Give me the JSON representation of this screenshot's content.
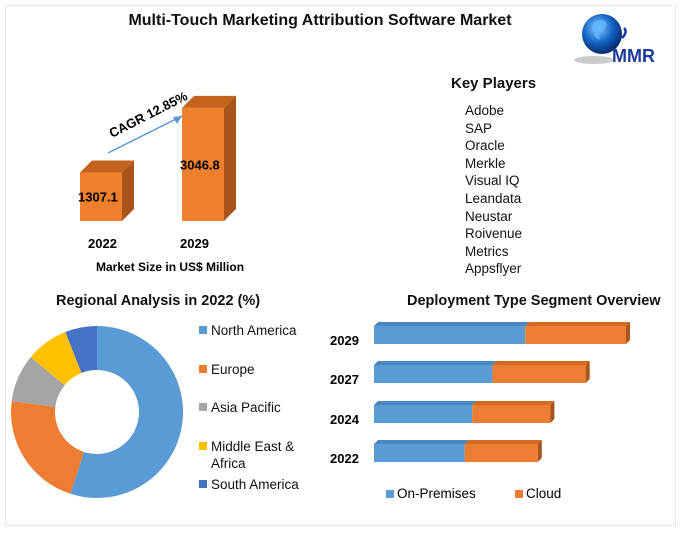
{
  "title": "Multi-Touch Marketing Attribution Software Market",
  "logo": {
    "text": "MMR",
    "icon": "globe-icon"
  },
  "colors": {
    "blue": "#5b9bd5",
    "orange": "#ed7d31",
    "gray": "#a5a5a5",
    "yellow": "#ffc000",
    "darkblue": "#4472c4",
    "bar3d": "#ee7f2d"
  },
  "key_players": {
    "title": "Key Players",
    "items": [
      "Adobe",
      "SAP",
      "Oracle",
      "Merkle",
      "Visual IQ",
      "Leandata",
      "Neustar",
      "Roivenue",
      "Metrics",
      "Appsflyer"
    ]
  },
  "chart_data": [
    {
      "type": "bar",
      "title": "",
      "xlabel": "Market Size in US$ Million",
      "ylabel": "",
      "categories": [
        "2022",
        "2029"
      ],
      "values": [
        1307.1,
        3046.8
      ],
      "data_labels": [
        "1307.1",
        "3046.8"
      ],
      "annotation": "CAGR 12.85%",
      "ylim": [
        0,
        3500
      ],
      "grid": false
    },
    {
      "type": "pie",
      "title": "Regional Analysis in 2022 (%)",
      "donut": true,
      "categories": [
        "North America",
        "Europe",
        "Asia Pacific",
        "Middle East & Africa",
        "South America"
      ],
      "legend_labels": [
        "North America",
        "Europe",
        "Asia Pacific",
        "Middle East &",
        "Africa",
        "South America"
      ],
      "values": [
        55,
        22,
        9,
        8,
        6
      ],
      "colors": [
        "#5b9bd5",
        "#ed7d31",
        "#a5a5a5",
        "#ffc000",
        "#4472c4"
      ],
      "legend": "right"
    },
    {
      "type": "bar",
      "orientation": "horizontal",
      "stacked": true,
      "title": "Deployment Type Segment Overview",
      "categories": [
        "2029",
        "2027",
        "2024",
        "2022"
      ],
      "series": [
        {
          "name": "On-Premises",
          "values": [
            60,
            47,
            39,
            36
          ],
          "color": "#5b9bd5"
        },
        {
          "name": "Cloud",
          "values": [
            40,
            37,
            31,
            29
          ],
          "color": "#ed7d31"
        }
      ],
      "xlim": [
        0,
        100
      ],
      "grid": false,
      "legend": "bottom"
    }
  ]
}
